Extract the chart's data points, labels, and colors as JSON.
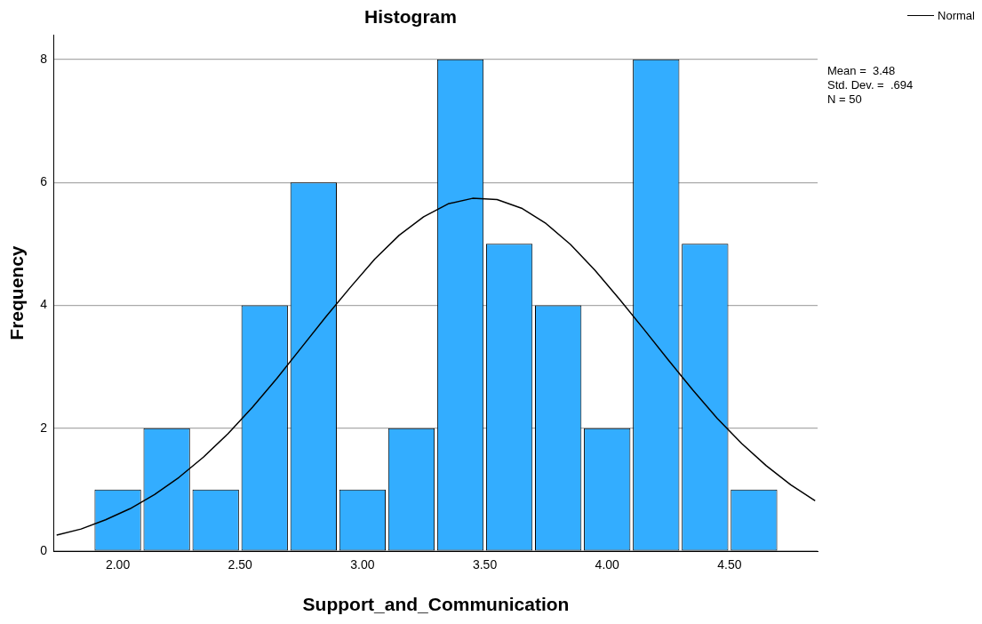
{
  "chart_data": {
    "type": "histogram",
    "title": "Histogram",
    "xlabel": "Support_and_Communication",
    "ylabel": "Frequency",
    "series": [
      {
        "color": "#33adff",
        "bins": [
          1.9,
          2.1,
          2.3,
          2.5,
          2.7,
          2.9,
          3.1,
          3.3,
          3.5,
          3.7,
          3.9,
          4.1,
          4.3,
          4.5,
          4.7
        ],
        "values": [
          1,
          2,
          1,
          4,
          6,
          1,
          2,
          8,
          5,
          4,
          2,
          8,
          5,
          1
        ]
      },
      {
        "type": "line",
        "name": "Normal",
        "color": "#000000",
        "x": [
          1.75,
          1.85,
          1.95,
          2.05,
          2.15,
          2.25,
          2.35,
          2.45,
          2.55,
          2.65,
          2.75,
          2.85,
          2.95,
          3.05,
          3.15,
          3.25,
          3.35,
          3.45,
          3.55,
          3.65,
          3.75,
          3.85,
          3.95,
          4.05,
          4.15,
          4.25,
          4.35,
          4.45,
          4.55,
          4.65,
          4.75,
          4.85
        ],
        "values": [
          0.26,
          0.36,
          0.51,
          0.69,
          0.92,
          1.2,
          1.53,
          1.91,
          2.34,
          2.81,
          3.31,
          3.81,
          4.29,
          4.75,
          5.14,
          5.44,
          5.65,
          5.74,
          5.72,
          5.58,
          5.33,
          4.99,
          4.57,
          4.1,
          3.61,
          3.11,
          2.62,
          2.16,
          1.75,
          1.39,
          1.08,
          0.82
        ]
      }
    ],
    "xlim": [
      1.74,
      4.86
    ],
    "xticks": [
      {
        "value": 2,
        "label": "2.00"
      },
      {
        "value": 2.5,
        "label": "2.50"
      },
      {
        "value": 3,
        "label": "3.00"
      },
      {
        "value": 3.5,
        "label": "3.50"
      },
      {
        "value": 4,
        "label": "4.00"
      },
      {
        "value": 4.5,
        "label": "4.50"
      }
    ],
    "ylim": [
      0,
      8.4
    ],
    "yticks": [
      0,
      2,
      4,
      6,
      8
    ],
    "grid": "y",
    "legend": "top right",
    "marker": "none",
    "line_style": "solid",
    "annotations": [
      "Mean =  3.48",
      "Std. Dev. =  .694",
      "N = 50"
    ]
  }
}
